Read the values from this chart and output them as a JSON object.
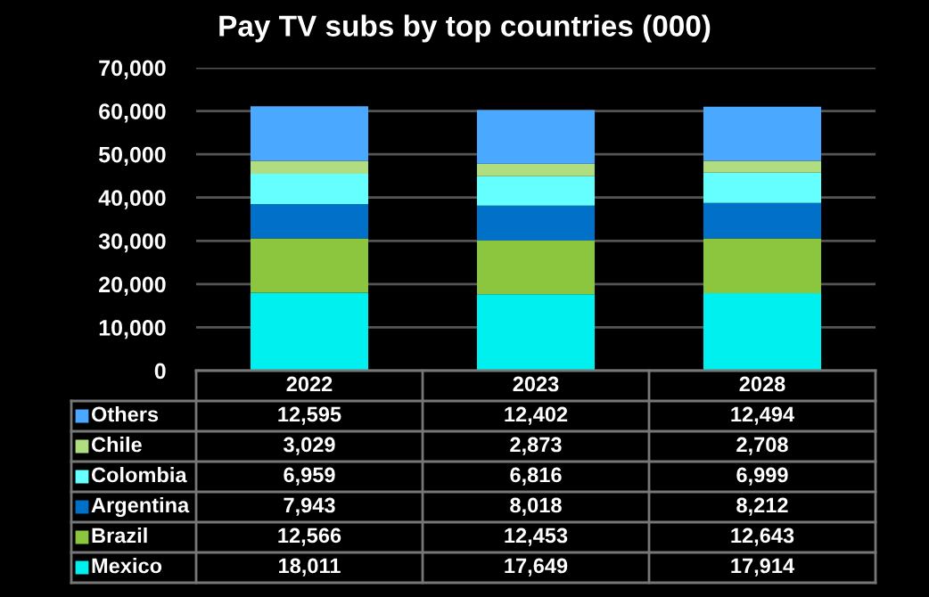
{
  "chart_data": {
    "type": "bar",
    "title": "Pay TV subs by top countries (000)",
    "categories": [
      "2022",
      "2023",
      "2028"
    ],
    "stacked": true,
    "ylim": [
      0,
      70000
    ],
    "yticks": [
      {
        "value": 0,
        "label": "0"
      },
      {
        "value": 10000,
        "label": "10,000"
      },
      {
        "value": 20000,
        "label": "20,000"
      },
      {
        "value": 30000,
        "label": "30,000"
      },
      {
        "value": 40000,
        "label": "40,000"
      },
      {
        "value": 50000,
        "label": "50,000"
      },
      {
        "value": 60000,
        "label": "60,000"
      },
      {
        "value": 70000,
        "label": "70,000"
      }
    ],
    "grid": "y",
    "legend": "bottom left",
    "series": [
      {
        "name": "Mexico",
        "color": "#00f0f0",
        "values": [
          18011,
          17649,
          17914
        ],
        "value_labels": [
          "18,011",
          "17,649",
          "17,914"
        ]
      },
      {
        "name": "Brazil",
        "color": "#8cc63f",
        "values": [
          12566,
          12453,
          12643
        ],
        "value_labels": [
          "12,566",
          "12,453",
          "12,643"
        ]
      },
      {
        "name": "Argentina",
        "color": "#0070c8",
        "values": [
          7943,
          8018,
          8212
        ],
        "value_labels": [
          "7,943",
          "8,018",
          "8,212"
        ]
      },
      {
        "name": "Colombia",
        "color": "#66ffff",
        "values": [
          6959,
          6816,
          6999
        ],
        "value_labels": [
          "6,959",
          "6,816",
          "6,999"
        ]
      },
      {
        "name": "Chile",
        "color": "#b0dd80",
        "values": [
          3029,
          2873,
          2708
        ],
        "value_labels": [
          "3,029",
          "2,873",
          "2,708"
        ]
      },
      {
        "name": "Others",
        "color": "#4aa8ff",
        "values": [
          12595,
          12402,
          12494
        ],
        "value_labels": [
          "12,595",
          "12,402",
          "12,494"
        ]
      }
    ]
  }
}
